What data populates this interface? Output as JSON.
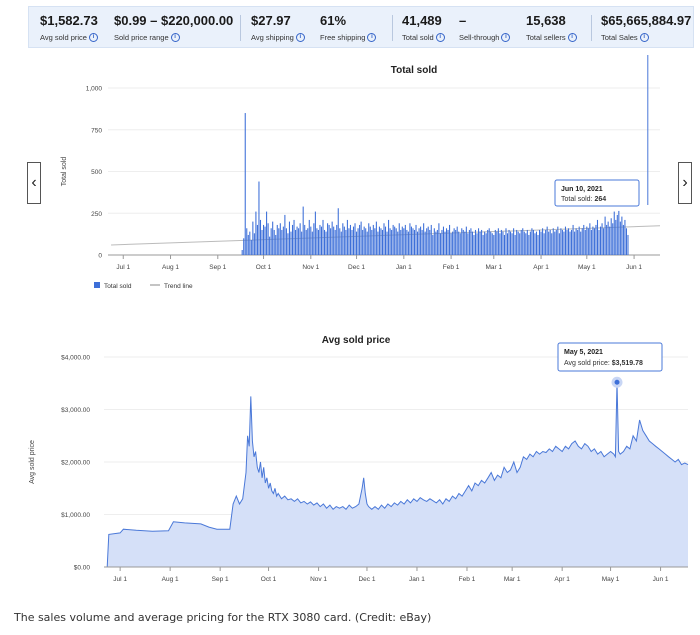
{
  "stats": [
    {
      "value": "$1,582.73",
      "label": "Avg sold price"
    },
    {
      "value": "$0.99 – $220,000.00",
      "label": "Sold price range"
    },
    {
      "value": "$27.97",
      "label": "Avg shipping"
    },
    {
      "value": "61%",
      "label": "Free shipping"
    },
    {
      "value": "41,489",
      "label": "Total sold"
    },
    {
      "value": "–",
      "label": "Sell-through"
    },
    {
      "value": "15,638",
      "label": "Total sellers"
    },
    {
      "value": "$65,665,884.97",
      "label": "Total Sales"
    }
  ],
  "nav": {
    "prev_icon": "chevron-left-icon",
    "next_icon": "chevron-right-icon"
  },
  "caption": "The sales volume and average pricing for the RTX 3080 card. (Credit: eBay)",
  "colors": {
    "bar": "#3d6fd8",
    "line": "#4a78d8",
    "area": "#d5e0f8",
    "trend": "#bbbbbb",
    "tooltip_border": "#4a78d8"
  },
  "chart_data": [
    {
      "type": "bar",
      "title": "Total sold",
      "xlabel": "",
      "ylabel": "Total sold",
      "ylim": [
        0,
        1000
      ],
      "y_ticks": [
        "0",
        "250",
        "500",
        "750",
        "1,000"
      ],
      "y_tick_values": [
        0,
        250,
        500,
        750,
        1000
      ],
      "x_ticks": [
        "Jul 1",
        "Aug 1",
        "Sep 1",
        "Oct 1",
        "Nov 1",
        "Dec 1",
        "Jan 1",
        "Feb 1",
        "Mar 1",
        "Apr 1",
        "May 1",
        "Jun 1"
      ],
      "x_tick_days": [
        0,
        31,
        62,
        92,
        123,
        153,
        184,
        215,
        243,
        274,
        304,
        335
      ],
      "x_range_days": [
        -10,
        352
      ],
      "legend": [
        {
          "name": "Total sold",
          "kind": "bar"
        },
        {
          "name": "Trend line",
          "kind": "line"
        }
      ],
      "legend_position": "bottom-left",
      "trend": {
        "from": [
          -8,
          60
        ],
        "to": [
          352,
          175
        ]
      },
      "tooltip": {
        "day": 344,
        "date": "Jun 10, 2021",
        "label": "Total sold:",
        "value": "264"
      },
      "series": [
        {
          "start_day": 78,
          "values": [
            30,
            100,
            850,
            160,
            120,
            140,
            90,
            200,
            130,
            260,
            180,
            440,
            210,
            150,
            180,
            170,
            260,
            190,
            110,
            160,
            200,
            150,
            120,
            180,
            160,
            190,
            150,
            170,
            240,
            160,
            130,
            200,
            140,
            180,
            210,
            150,
            170,
            160,
            190,
            140,
            290,
            180,
            150,
            160,
            210,
            170,
            140,
            190,
            260,
            160,
            150,
            180,
            170,
            210,
            150,
            140,
            190,
            180,
            160,
            200,
            170,
            150,
            180,
            280,
            160,
            140,
            190,
            170,
            150,
            210,
            160,
            180,
            150,
            170,
            190,
            140,
            160,
            180,
            200,
            150,
            170,
            160,
            140,
            190,
            170,
            150,
            180,
            160,
            200,
            140,
            170,
            160,
            150,
            190,
            170,
            140,
            210,
            160,
            150,
            180,
            170,
            160,
            140,
            190,
            150,
            170,
            160,
            180,
            150,
            140,
            190,
            170,
            160,
            150,
            180,
            140,
            160,
            170,
            150,
            190,
            140,
            160,
            170,
            150,
            180,
            120,
            160,
            140,
            150,
            190,
            130,
            150,
            170,
            140,
            160,
            150,
            180,
            130,
            140,
            160,
            150,
            170,
            140,
            130,
            160,
            150,
            140,
            170,
            130,
            150,
            160,
            140,
            120,
            150,
            130,
            160,
            140,
            150,
            120,
            140,
            130,
            150,
            160,
            140,
            130,
            120,
            150,
            140,
            160,
            130,
            150,
            140,
            120,
            160,
            130,
            150,
            140,
            130,
            160,
            120,
            150,
            140,
            130,
            150,
            160,
            140,
            130,
            150,
            120,
            140,
            160,
            150,
            130,
            140,
            120,
            150,
            140,
            160,
            130,
            150,
            170,
            140,
            150,
            130,
            160,
            140,
            150,
            170,
            130,
            160,
            150,
            140,
            170,
            150,
            160,
            140,
            150,
            180,
            140,
            160,
            150,
            170,
            140,
            160,
            180,
            150,
            170,
            160,
            190,
            150,
            170,
            160,
            180,
            210,
            150,
            170,
            190,
            160,
            230,
            180,
            200,
            170,
            220,
            190,
            260,
            210,
            240,
            264,
            200,
            230,
            180,
            210,
            160,
            120
          ]
        }
      ]
    },
    {
      "type": "area",
      "title": "Avg sold price",
      "xlabel": "",
      "ylabel": "Avg sold price",
      "ylim": [
        0,
        4000
      ],
      "y_ticks": [
        "$0.00",
        "$1,000.00",
        "$2,000.00",
        "$3,000.00",
        "$4,000.00"
      ],
      "y_tick_values": [
        0,
        1000,
        2000,
        3000,
        4000
      ],
      "x_ticks": [
        "Jul 1",
        "Aug 1",
        "Sep 1",
        "Oct 1",
        "Nov 1",
        "Dec 1",
        "Jan 1",
        "Feb 1",
        "Mar 1",
        "Apr 1",
        "May 1",
        "Jun 1"
      ],
      "x_tick_days": [
        0,
        31,
        62,
        92,
        123,
        153,
        184,
        215,
        243,
        274,
        304,
        335
      ],
      "x_range_days": [
        -10,
        352
      ],
      "tooltip": {
        "day": 308,
        "date": "May 5, 2021",
        "label": "Avg sold price:",
        "value": "$3,519.78"
      },
      "series": [
        {
          "points": [
            [
              -8,
              0
            ],
            [
              -7,
              620
            ],
            [
              0,
              650
            ],
            [
              2,
              720
            ],
            [
              10,
              700
            ],
            [
              20,
              680
            ],
            [
              30,
              690
            ],
            [
              33,
              860
            ],
            [
              40,
              840
            ],
            [
              50,
              820
            ],
            [
              55,
              760
            ],
            [
              60,
              720
            ],
            [
              68,
              720
            ],
            [
              70,
              1200
            ],
            [
              72,
              1350
            ],
            [
              74,
              1200
            ],
            [
              76,
              1300
            ],
            [
              78,
              1800
            ],
            [
              79,
              2500
            ],
            [
              80,
              2300
            ],
            [
              81,
              3250
            ],
            [
              82,
              2400
            ],
            [
              83,
              2100
            ],
            [
              84,
              2200
            ],
            [
              85,
              1900
            ],
            [
              86,
              1800
            ],
            [
              87,
              2000
            ],
            [
              88,
              1700
            ],
            [
              89,
              1900
            ],
            [
              90,
              1600
            ],
            [
              91,
              1700
            ],
            [
              92,
              1500
            ],
            [
              93,
              1600
            ],
            [
              94,
              1450
            ],
            [
              95,
              1400
            ],
            [
              96,
              1500
            ],
            [
              97,
              1350
            ],
            [
              98,
              1400
            ],
            [
              100,
              1300
            ],
            [
              102,
              1350
            ],
            [
              104,
              1280
            ],
            [
              106,
              1300
            ],
            [
              108,
              1250
            ],
            [
              110,
              1300
            ],
            [
              112,
              1220
            ],
            [
              114,
              1250
            ],
            [
              116,
              1200
            ],
            [
              118,
              1240
            ],
            [
              120,
              1180
            ],
            [
              122,
              1220
            ],
            [
              124,
              1150
            ],
            [
              126,
              1200
            ],
            [
              128,
              1120
            ],
            [
              130,
              1180
            ],
            [
              132,
              1100
            ],
            [
              134,
              1150
            ],
            [
              136,
              1120
            ],
            [
              138,
              1150
            ],
            [
              140,
              1100
            ],
            [
              142,
              1180
            ],
            [
              144,
              1120
            ],
            [
              146,
              1150
            ],
            [
              148,
              1200
            ],
            [
              150,
              1500
            ],
            [
              151,
              1700
            ],
            [
              152,
              1400
            ],
            [
              153,
              1200
            ],
            [
              154,
              1150
            ],
            [
              156,
              1100
            ],
            [
              158,
              1150
            ],
            [
              160,
              1100
            ],
            [
              162,
              1180
            ],
            [
              164,
              1120
            ],
            [
              166,
              1200
            ],
            [
              168,
              1150
            ],
            [
              170,
              1220
            ],
            [
              172,
              1180
            ],
            [
              174,
              1250
            ],
            [
              176,
              1200
            ],
            [
              178,
              1280
            ],
            [
              180,
              1220
            ],
            [
              182,
              1300
            ],
            [
              184,
              1250
            ],
            [
              186,
              1320
            ],
            [
              188,
              1280
            ],
            [
              190,
              1250
            ],
            [
              192,
              1300
            ],
            [
              194,
              1260
            ],
            [
              196,
              1220
            ],
            [
              198,
              1280
            ],
            [
              200,
              1200
            ],
            [
              202,
              1300
            ],
            [
              204,
              1250
            ],
            [
              206,
              1350
            ],
            [
              208,
              1300
            ],
            [
              210,
              1400
            ],
            [
              212,
              1350
            ],
            [
              214,
              1450
            ],
            [
              216,
              1550
            ],
            [
              218,
              1450
            ],
            [
              220,
              1600
            ],
            [
              222,
              1550
            ],
            [
              224,
              1650
            ],
            [
              226,
              1600
            ],
            [
              228,
              1700
            ],
            [
              230,
              1800
            ],
            [
              232,
              1650
            ],
            [
              234,
              1750
            ],
            [
              236,
              1700
            ],
            [
              238,
              1900
            ],
            [
              240,
              1800
            ],
            [
              242,
              1850
            ],
            [
              244,
              2000
            ],
            [
              246,
              1800
            ],
            [
              248,
              1900
            ],
            [
              250,
              2100
            ],
            [
              252,
              2050
            ],
            [
              254,
              2150
            ],
            [
              256,
              2100
            ],
            [
              258,
              2200
            ],
            [
              260,
              2150
            ],
            [
              262,
              2200
            ],
            [
              264,
              2180
            ],
            [
              266,
              2250
            ],
            [
              268,
              2200
            ],
            [
              270,
              2300
            ],
            [
              272,
              2250
            ],
            [
              274,
              2200
            ],
            [
              276,
              2300
            ],
            [
              278,
              2250
            ],
            [
              280,
              2350
            ],
            [
              282,
              2400
            ],
            [
              284,
              2300
            ],
            [
              286,
              2250
            ],
            [
              288,
              2350
            ],
            [
              290,
              2300
            ],
            [
              292,
              2200
            ],
            [
              294,
              2250
            ],
            [
              296,
              2150
            ],
            [
              298,
              2200
            ],
            [
              300,
              2100
            ],
            [
              302,
              2150
            ],
            [
              304,
              2200
            ],
            [
              306,
              2150
            ],
            [
              307,
              2100
            ],
            [
              308,
              3519.78
            ],
            [
              309,
              2200
            ],
            [
              310,
              2150
            ],
            [
              312,
              2200
            ],
            [
              314,
              2300
            ],
            [
              316,
              2250
            ],
            [
              318,
              2500
            ],
            [
              320,
              2400
            ],
            [
              322,
              2800
            ],
            [
              324,
              2600
            ],
            [
              326,
              2500
            ],
            [
              328,
              2400
            ],
            [
              330,
              2350
            ],
            [
              332,
              2300
            ],
            [
              334,
              2250
            ],
            [
              336,
              2200
            ],
            [
              338,
              2150
            ],
            [
              340,
              2100
            ],
            [
              342,
              2050
            ],
            [
              344,
              2000
            ],
            [
              346,
              2050
            ],
            [
              348,
              1950
            ],
            [
              350,
              1980
            ],
            [
              352,
              1950
            ]
          ]
        }
      ]
    }
  ]
}
